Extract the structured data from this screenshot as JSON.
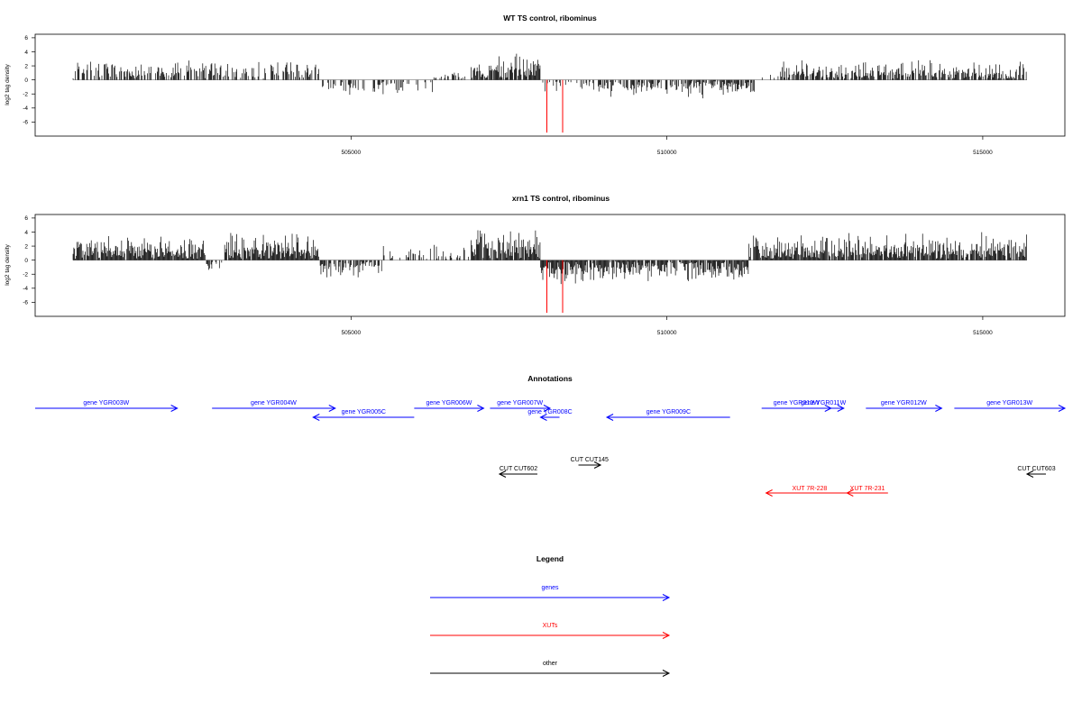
{
  "chart_data": [
    {
      "type": "bar",
      "title": "WT TS control, ribominus",
      "ylabel": "log2 tag density",
      "xlabel": "",
      "xlim": [
        500000,
        516300
      ],
      "ylim": [
        -8,
        6.5
      ],
      "y_ticks": [
        "6",
        "4",
        "2",
        "0",
        "-2",
        "-4",
        "-6"
      ],
      "x_ticks": [
        {
          "value": 505000,
          "label": "505000"
        },
        {
          "value": 510000,
          "label": "510000"
        },
        {
          "value": 515000,
          "label": "515000"
        }
      ],
      "range_start": 500600,
      "range_end": 515700,
      "regions": [
        {
          "from": 500600,
          "to": 504500,
          "sign": 1,
          "density": 0.55,
          "amp": 2.2
        },
        {
          "from": 504500,
          "to": 506300,
          "sign": -1,
          "density": 0.35,
          "amp": 1.6
        },
        {
          "from": 506300,
          "to": 506900,
          "sign": 1,
          "density": 0.25,
          "amp": 1.0
        },
        {
          "from": 506900,
          "to": 508000,
          "sign": 1,
          "density": 0.75,
          "amp": 3.0
        },
        {
          "from": 508000,
          "to": 508900,
          "sign": -1,
          "density": 0.3,
          "amp": 1.2
        },
        {
          "from": 508900,
          "to": 511400,
          "sign": -1,
          "density": 0.65,
          "amp": 1.8
        },
        {
          "from": 511400,
          "to": 511800,
          "sign": 1,
          "density": 0.2,
          "amp": 0.8
        },
        {
          "from": 511800,
          "to": 515700,
          "sign": 1,
          "density": 0.7,
          "amp": 2.0
        }
      ],
      "highlight": [
        {
          "x": 508100,
          "y": -7.5
        },
        {
          "x": 508350,
          "y": -7.5
        }
      ],
      "colors": {
        "bars": "#000000",
        "highlight": "#ff0000",
        "axis": "#000000"
      }
    },
    {
      "type": "bar",
      "title": "xrn1 TS control, ribominus",
      "ylabel": "log2 tag density",
      "xlabel": "",
      "xlim": [
        500000,
        516300
      ],
      "ylim": [
        -8,
        6.5
      ],
      "y_ticks": [
        "6",
        "4",
        "2",
        "0",
        "-2",
        "-4",
        "-6"
      ],
      "x_ticks": [
        {
          "value": 505000,
          "label": "505000"
        },
        {
          "value": 510000,
          "label": "510000"
        },
        {
          "value": 515000,
          "label": "515000"
        }
      ],
      "range_start": 500600,
      "range_end": 515700,
      "regions": [
        {
          "from": 500600,
          "to": 502700,
          "sign": 1,
          "density": 0.95,
          "amp": 2.5
        },
        {
          "from": 502700,
          "to": 503000,
          "sign": -1,
          "density": 0.5,
          "amp": 1.2
        },
        {
          "from": 503000,
          "to": 504500,
          "sign": 1,
          "density": 0.98,
          "amp": 3.0
        },
        {
          "from": 504500,
          "to": 505500,
          "sign": -1,
          "density": 0.75,
          "amp": 2.0
        },
        {
          "from": 505500,
          "to": 506900,
          "sign": 1,
          "density": 0.3,
          "amp": 1.5
        },
        {
          "from": 506900,
          "to": 508000,
          "sign": 1,
          "density": 0.98,
          "amp": 3.6
        },
        {
          "from": 508000,
          "to": 508600,
          "sign": -1,
          "density": 0.95,
          "amp": 3.0
        },
        {
          "from": 508600,
          "to": 511300,
          "sign": -1,
          "density": 0.85,
          "amp": 2.2
        },
        {
          "from": 511300,
          "to": 515700,
          "sign": 1,
          "density": 0.9,
          "amp": 2.8
        }
      ],
      "highlight": [
        {
          "x": 508100,
          "y": -7.5
        },
        {
          "x": 508350,
          "y": -7.5
        }
      ],
      "colors": {
        "bars": "#000000",
        "highlight": "#ff0000",
        "axis": "#000000"
      }
    }
  ],
  "annotations": {
    "title": "Annotations",
    "genes": [
      {
        "label": "gene YGR003W",
        "from": 500000,
        "to": 502250,
        "dir": "right",
        "row": 0
      },
      {
        "label": "gene YGR004W",
        "from": 502800,
        "to": 504750,
        "dir": "right",
        "row": 0
      },
      {
        "label": "gene YGR005C",
        "from": 504400,
        "to": 506000,
        "dir": "left",
        "row": 1
      },
      {
        "label": "gene YGR006W",
        "from": 506000,
        "to": 507100,
        "dir": "right",
        "row": 0
      },
      {
        "label": "gene YGR007W",
        "from": 507200,
        "to": 508150,
        "dir": "right",
        "row": 0
      },
      {
        "label": "gene YGR008C",
        "from": 508000,
        "to": 508300,
        "dir": "left",
        "row": 1
      },
      {
        "label": "gene YGR009C",
        "from": 509050,
        "to": 511000,
        "dir": "left",
        "row": 1
      },
      {
        "label": "gene YGR010W",
        "from": 511500,
        "to": 512600,
        "dir": "right",
        "row": 0
      },
      {
        "label": "gene YGR011W",
        "from": 512150,
        "to": 512800,
        "dir": "right",
        "row": 0
      },
      {
        "label": "gene YGR012W",
        "from": 513150,
        "to": 514350,
        "dir": "right",
        "row": 0
      },
      {
        "label": "gene YGR013W",
        "from": 514550,
        "to": 516300,
        "dir": "right",
        "row": 0
      }
    ],
    "others": [
      {
        "label": "CUT CUT145",
        "from": 508600,
        "to": 508950,
        "dir": "right",
        "row": 0
      },
      {
        "label": "CUT CUT602",
        "from": 507350,
        "to": 507950,
        "dir": "left",
        "row": 1
      },
      {
        "label": "CUT CUT603",
        "from": 515700,
        "to": 516000,
        "dir": "left",
        "row": 1
      }
    ],
    "xuts": [
      {
        "label": "XUT 7R-228",
        "from": 511570,
        "to": 512950,
        "dir": "left"
      },
      {
        "label": "XUT 7R-231",
        "from": 512850,
        "to": 513500,
        "dir": "left"
      }
    ]
  },
  "legend": {
    "title": "Legend",
    "items": [
      {
        "label": "genes",
        "color": "#0000ff"
      },
      {
        "label": "XUTs",
        "color": "#ff0000"
      },
      {
        "label": "other",
        "color": "#000000"
      }
    ]
  }
}
